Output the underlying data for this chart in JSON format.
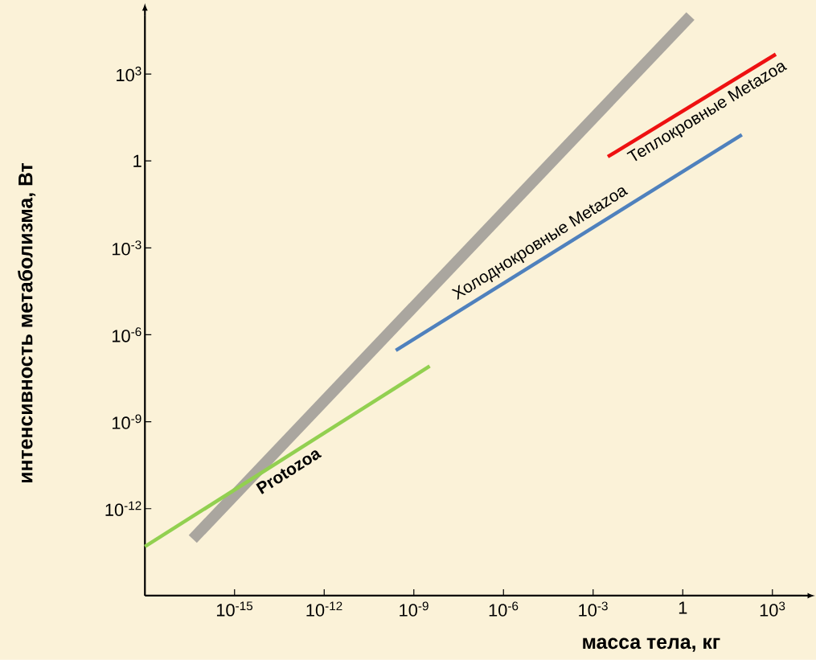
{
  "chart_data": {
    "type": "line",
    "xlabel": "масса тела, кг",
    "ylabel": "интенсивность метаболизма, Вт",
    "log": "xy",
    "xlim": [
      1e-18,
      10000.0
    ],
    "ylim": [
      1e-15,
      100000.0
    ],
    "xticks": [
      {
        "value": 1e-15,
        "label": "10$^{-15}$"
      },
      {
        "value": 1e-12,
        "label": "10$^{-12}$"
      },
      {
        "value": 1e-09,
        "label": "10$^{-9}$"
      },
      {
        "value": 1e-06,
        "label": "10$^{-6}$"
      },
      {
        "value": 0.001,
        "label": "10$^{-3}$"
      },
      1,
      {
        "value": 1000,
        "label": "10$^{3}$"
      }
    ],
    "yticks": [
      {
        "value": 1e-12,
        "label": "10$^{-12}$"
      },
      {
        "value": 1e-09,
        "label": "10$^{-9}$"
      },
      {
        "value": 1e-06,
        "label": "10$^{-6}$"
      },
      {
        "value": 0.001,
        "label": "10$^{-3}$"
      },
      1,
      {
        "value": 1000,
        "label": "10$^{3}$"
      }
    ],
    "series": [
      {
        "color": "#aaa69f",
        "x": [
          4e-17,
          1.8
        ],
        "values": [
          9e-14,
          100000.0
        ]
      },
      {
        "name": "Protozoa",
        "color": "#92d050",
        "x": [
          1e-18,
          3.4e-09
        ],
        "values": [
          4.9e-14,
          8.3e-08
        ]
      },
      {
        "name": "Холоднокровные Metazoa",
        "color": "#4f81bd",
        "x": [
          2.5e-10,
          95
        ],
        "values": [
          2.9e-07,
          8
        ]
      },
      {
        "name": "Теплокровные Metazoa",
        "color": "#ee1111",
        "x": [
          0.0031,
          1300
        ],
        "values": [
          1.4,
          4800
        ]
      }
    ]
  }
}
